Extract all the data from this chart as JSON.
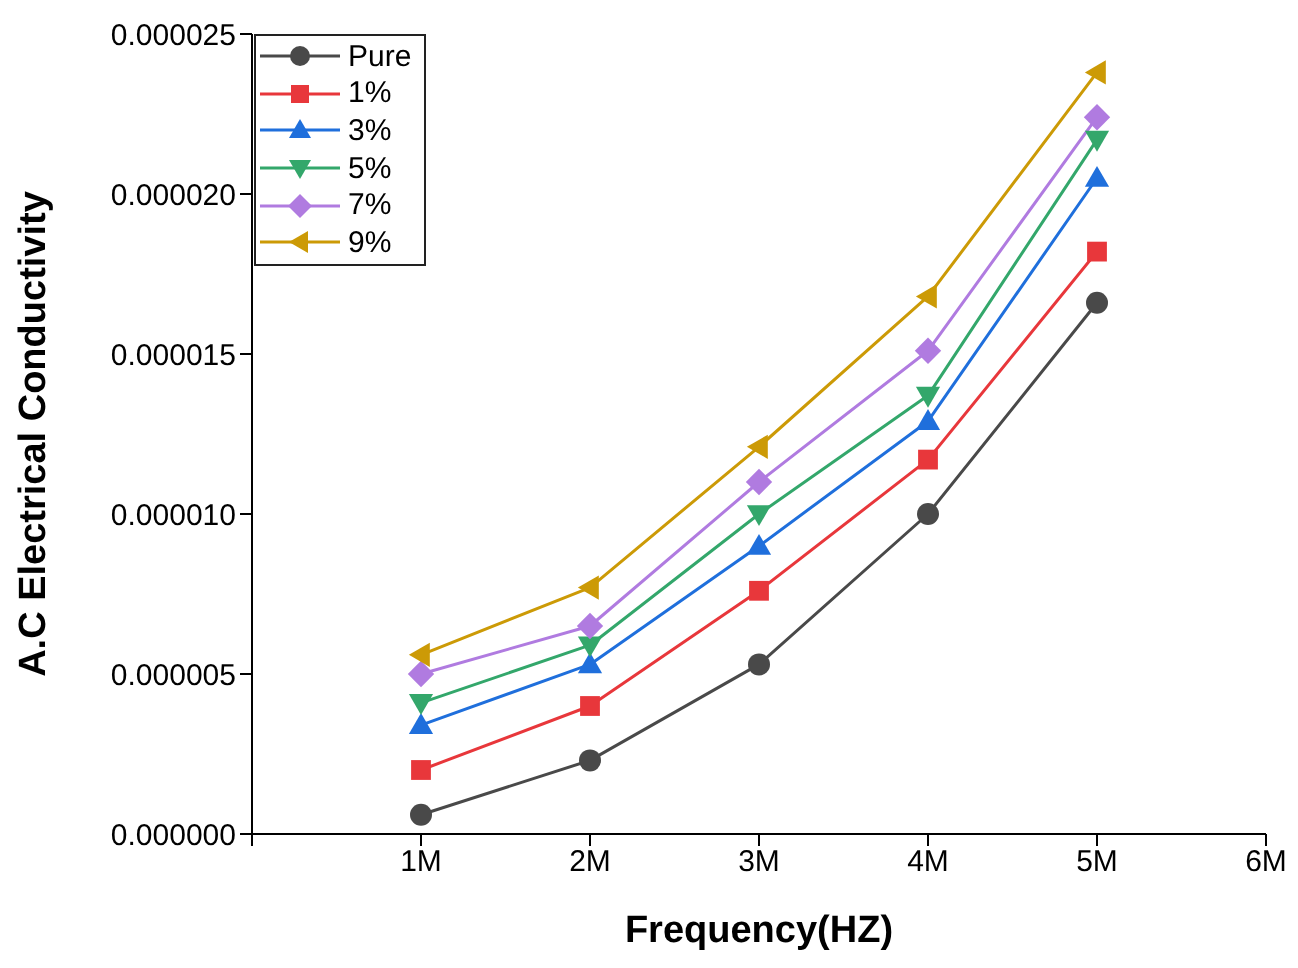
{
  "chart_data": {
    "type": "line",
    "xlabel": "Frequency(HZ)",
    "ylabel": "A.C Electrical Conductivity",
    "x": [
      1,
      2,
      3,
      4,
      5
    ],
    "xlim": [
      0,
      6
    ],
    "xticks": [
      {
        "value": 0,
        "label": null
      },
      {
        "value": 1,
        "label": "1M"
      },
      {
        "value": 2,
        "label": "2M"
      },
      {
        "value": 3,
        "label": "3M"
      },
      {
        "value": 4,
        "label": "4M"
      },
      {
        "value": 5,
        "label": "5M"
      },
      {
        "value": 6,
        "label": "6M"
      }
    ],
    "ylim": [
      0,
      2.5e-05
    ],
    "yticks": [
      {
        "value": 0,
        "label": "0.000000"
      },
      {
        "value": 5e-06,
        "label": "0.000005"
      },
      {
        "value": 1e-05,
        "label": "0.000010"
      },
      {
        "value": 1.5e-05,
        "label": "0.000015"
      },
      {
        "value": 2e-05,
        "label": "0.000020"
      },
      {
        "value": 2.5e-05,
        "label": "0.000025"
      }
    ],
    "legend": "top left",
    "grid": false,
    "series": [
      {
        "name": "Pure",
        "color": "#494949",
        "marker": "circle",
        "values": [
          6e-07,
          2.3e-06,
          5.3e-06,
          1e-05,
          1.66e-05
        ]
      },
      {
        "name": "1%",
        "color": "#e8373b",
        "marker": "square",
        "values": [
          2e-06,
          4e-06,
          7.6e-06,
          1.17e-05,
          1.82e-05
        ]
      },
      {
        "name": "3%",
        "color": "#1f6fdc",
        "marker": "triangle",
        "values": [
          3.4e-06,
          5.3e-06,
          9e-06,
          1.29e-05,
          2.05e-05
        ]
      },
      {
        "name": "5%",
        "color": "#33a76b",
        "marker": "triangle-down",
        "values": [
          4.1e-06,
          5.9e-06,
          1e-05,
          1.37e-05,
          2.17e-05
        ]
      },
      {
        "name": "7%",
        "color": "#b07be0",
        "marker": "diamond",
        "values": [
          5e-06,
          6.5e-06,
          1.1e-05,
          1.51e-05,
          2.24e-05
        ]
      },
      {
        "name": "9%",
        "color": "#cc9a06",
        "marker": "triangle-left",
        "values": [
          5.6e-06,
          7.7e-06,
          1.21e-05,
          1.68e-05,
          2.38e-05
        ]
      }
    ]
  }
}
